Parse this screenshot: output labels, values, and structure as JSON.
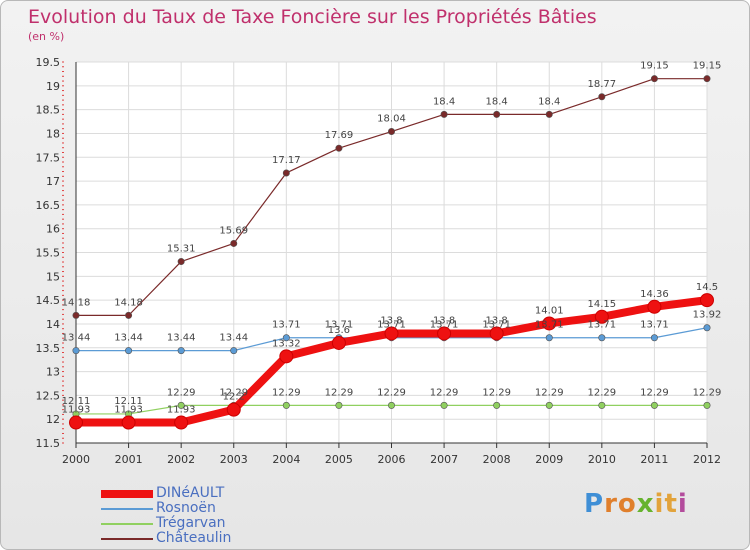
{
  "title": "Evolution du Taux de Taxe Foncière sur les Propriétés Bâties",
  "unit": "(en %)",
  "logo": {
    "letters": [
      "P",
      "r",
      "o",
      "x",
      "i",
      "t",
      "i"
    ],
    "colors": [
      "#3f8fd6",
      "#e07f2c",
      "#e07f2c",
      "#66b32e",
      "#e2a33b",
      "#e2a33b",
      "#b34c9c"
    ]
  },
  "chart_data": {
    "type": "line",
    "x": [
      2000,
      2001,
      2002,
      2003,
      2004,
      2005,
      2006,
      2007,
      2008,
      2009,
      2010,
      2011,
      2012
    ],
    "ylim": [
      11.5,
      19.5
    ],
    "yticks": [
      11.5,
      12,
      12.5,
      13,
      13.5,
      14,
      14.5,
      15,
      15.5,
      16,
      16.5,
      17,
      17.5,
      18,
      18.5,
      19,
      19.5
    ],
    "ytick_labels": [
      "11.5",
      "12",
      "12.5",
      "13",
      "13.5",
      "14",
      "14.5",
      "15",
      "15.5",
      "16",
      "16.5",
      "17",
      "17.5",
      "18",
      "18.5",
      "19",
      "19.5"
    ],
    "xlabel": "",
    "ylabel": "",
    "legend_position": "bottom-left",
    "series": [
      {
        "name": "Châteaulin",
        "color": "#7a2a2a",
        "values": [
          14.18,
          14.18,
          15.31,
          15.69,
          17.17,
          17.69,
          18.04,
          18.4,
          18.4,
          18.4,
          18.77,
          19.15,
          19.15
        ],
        "labels": [
          "14.18",
          "14.18",
          "15.31",
          "15.69",
          "17.17",
          "17.69",
          "18.04",
          "18.4",
          "18.4",
          "18.4",
          "18.77",
          "19.15",
          "19.15"
        ]
      },
      {
        "name": "Rosnoën",
        "color": "#5b9bd5",
        "values": [
          13.44,
          13.44,
          13.44,
          13.44,
          13.71,
          13.71,
          13.71,
          13.71,
          13.71,
          13.71,
          13.71,
          13.71,
          13.92
        ],
        "labels": [
          "13.44",
          "13.44",
          "13.44",
          "13.44",
          "13.71",
          "13.71",
          "13.71",
          "13.71",
          "13.71",
          "13.71",
          "13.71",
          "13.71",
          "13.92"
        ]
      },
      {
        "name": "Trégarvan",
        "color": "#90d060",
        "values": [
          12.11,
          12.11,
          12.29,
          12.29,
          12.29,
          12.29,
          12.29,
          12.29,
          12.29,
          12.29,
          12.29,
          12.29,
          12.29
        ],
        "labels": [
          "12.11",
          "12.11",
          "12.29",
          "12.29",
          "12.29",
          "12.29",
          "12.29",
          "12.29",
          "12.29",
          "12.29",
          "12.29",
          "12.29",
          "12.29"
        ]
      },
      {
        "name": "DINéAULT",
        "color": "#ee1111",
        "values": [
          11.93,
          11.93,
          11.93,
          12.2,
          13.32,
          13.6,
          13.8,
          13.8,
          13.8,
          14.01,
          14.15,
          14.36,
          14.5
        ],
        "labels": [
          "11.93",
          "11.93",
          "11.93",
          "12.2",
          "13.32",
          "13.6",
          "13.8",
          "13.8",
          "13.8",
          "14.01",
          "14.15",
          "14.36",
          "14.5"
        ]
      }
    ],
    "legend_order": [
      "DINéAULT",
      "Rosnoën",
      "Trégarvan",
      "Châteaulin"
    ]
  }
}
